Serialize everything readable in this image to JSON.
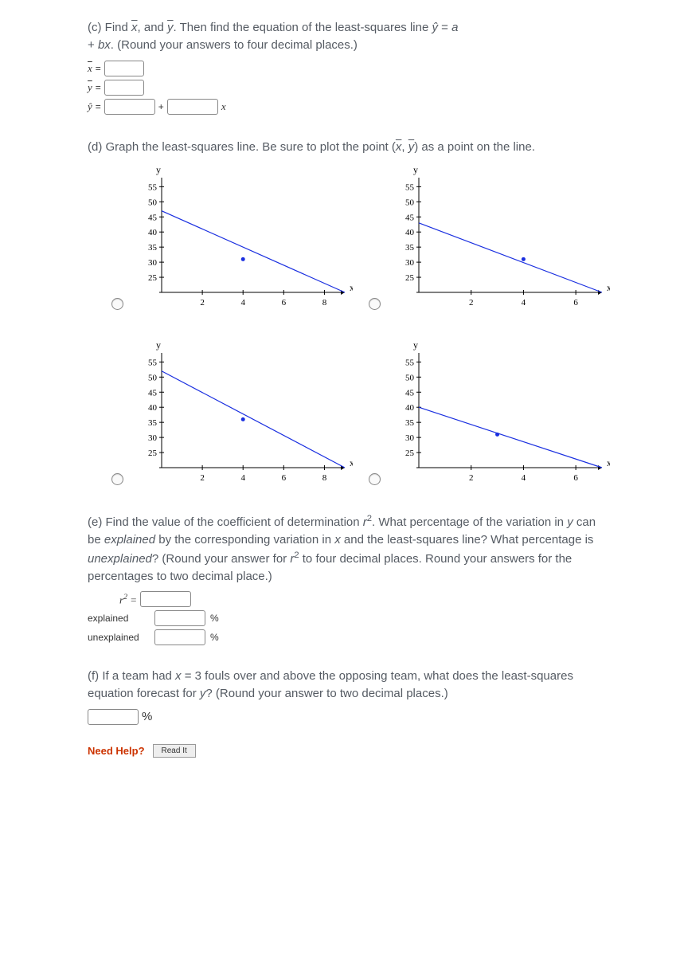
{
  "partC": {
    "text_before": "(c) Find ",
    "xbar": "x",
    "mid1": ", and ",
    "ybar": "y",
    "rest": ". Then find the equation of the least-squares line ŷ = a + bx. (Round your answers to four decimal places.)",
    "rows": {
      "xbar_label": "x̄ =",
      "ybar_label": "ȳ =",
      "yhat_label": "ŷ =",
      "plus": "+",
      "x_suffix": "x"
    }
  },
  "partD": {
    "text": "(d) Graph the least-squares line. Be sure to plot the point (x̄, ȳ) as a point on the line.",
    "axis": {
      "y_label": "y",
      "x_label": "x",
      "yticks": [
        25,
        30,
        35,
        40,
        45,
        50,
        55
      ],
      "colors": {
        "axis": "#000000",
        "line": "#1a2fe0",
        "point": "#1a2fe0"
      }
    },
    "graphs": [
      {
        "xticks": [
          2,
          4,
          6,
          8
        ],
        "xmax": 9,
        "line": [
          [
            0,
            47
          ],
          [
            9,
            20
          ]
        ],
        "point": [
          4,
          31
        ]
      },
      {
        "xticks": [
          2,
          4,
          6
        ],
        "xmax": 7,
        "line": [
          [
            0,
            43
          ],
          [
            7,
            20
          ]
        ],
        "point": [
          4,
          31
        ]
      },
      {
        "xticks": [
          2,
          4,
          6,
          8
        ],
        "xmax": 9,
        "line": [
          [
            0,
            52
          ],
          [
            9,
            20
          ]
        ],
        "point": [
          4,
          36
        ]
      },
      {
        "xticks": [
          2,
          4,
          6
        ],
        "xmax": 7,
        "line": [
          [
            0,
            40
          ],
          [
            7,
            20
          ]
        ],
        "point": [
          3,
          31
        ]
      }
    ]
  },
  "partE": {
    "text": "(e) Find the value of the coefficient of determination r². What percentage of the variation in y can be explained by the corresponding variation in x and the least-squares line? What percentage is unexplained? (Round your answer for r² to four decimal places. Round your answers for the percentages to two decimal place.)",
    "r2_label": "r² =",
    "explained_label": "explained",
    "unexplained_label": "unexplained",
    "pct": "%"
  },
  "partF": {
    "text": "(f) If a team had x = 3 fouls over and above the opposing team, what does the least-squares equation forecast for y? (Round your answer to two decimal places.)",
    "pct": "%"
  },
  "help": {
    "label": "Need Help?",
    "read": "Read It"
  }
}
